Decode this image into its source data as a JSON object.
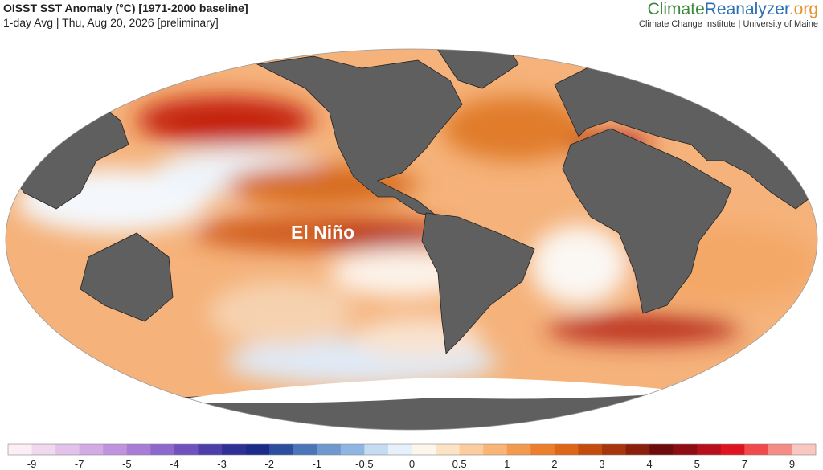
{
  "header": {
    "title": "OISST SST Anomaly (°C) [1971-2000 baseline]",
    "subtitle": "1-day Avg | Thu, Aug 20, 2026 [preliminary]"
  },
  "brand": {
    "climate": "Climate",
    "reanalyzer": "Reanalyzer",
    "org": ".org",
    "subtitle": "Climate Change Institute | University of Maine"
  },
  "annotation": "El Niño",
  "colorbar": {
    "ticks": [
      -9,
      -7,
      -5,
      -4,
      -3,
      -2,
      -1,
      -0.5,
      0,
      0.5,
      1,
      2,
      3,
      4,
      5,
      7,
      9
    ],
    "colors": [
      "#fdeef6",
      "#f0d8ee",
      "#e2c2ea",
      "#d2aae4",
      "#c093de",
      "#a97dd6",
      "#8f68cc",
      "#6f52bd",
      "#4d3eaa",
      "#2f2f98",
      "#1c2a8a",
      "#2d4d9f",
      "#4b75b9",
      "#6f98cf",
      "#8fb6e2",
      "#c4dbf2",
      "#e6f0fa",
      "#fdf6ec",
      "#fde3c6",
      "#fbcc9d",
      "#f8b576",
      "#f39a4e",
      "#ec7f2b",
      "#de6716",
      "#c44d0e",
      "#a8360c",
      "#8b1f0c",
      "#6e0c0c",
      "#8e0d14",
      "#b7101c",
      "#e0141e",
      "#f24a4a",
      "#f58c86",
      "#fac7c0"
    ]
  }
}
